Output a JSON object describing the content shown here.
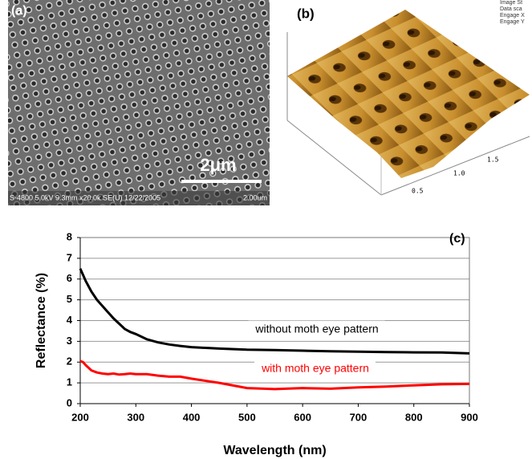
{
  "panel_a": {
    "label": "(a)",
    "scale_bar": "2μm",
    "info": "S-4800 5.0kV 9.3mm x20.0k SE(U) 12/22/2005",
    "field": "2.00um"
  },
  "panel_b": {
    "label": "(b)",
    "axis_labels": [
      "0.5",
      "1.0",
      "1.5"
    ],
    "header_lines": [
      "Image St",
      "Data sca",
      "Engage X",
      "Engage Y"
    ]
  },
  "chart_data": {
    "type": "line",
    "panel_label": "(c)",
    "xlabel": "Wavelength (nm)",
    "ylabel": "Reflectance (%)",
    "x": [
      200,
      205,
      210,
      220,
      230,
      240,
      250,
      260,
      270,
      280,
      290,
      300,
      320,
      340,
      360,
      380,
      400,
      450,
      500,
      550,
      600,
      650,
      700,
      750,
      800,
      850,
      900
    ],
    "series": [
      {
        "name": "without moth eye pattern",
        "color": "#000000",
        "values": [
          6.5,
          6.2,
          5.9,
          5.4,
          5.0,
          4.7,
          4.4,
          4.1,
          3.85,
          3.6,
          3.45,
          3.35,
          3.1,
          2.95,
          2.85,
          2.78,
          2.72,
          2.65,
          2.6,
          2.58,
          2.55,
          2.52,
          2.5,
          2.48,
          2.47,
          2.46,
          2.42
        ]
      },
      {
        "name": "with moth eye pattern",
        "color": "#ff0000",
        "values": [
          2.05,
          2.0,
          1.85,
          1.6,
          1.5,
          1.45,
          1.42,
          1.45,
          1.4,
          1.42,
          1.45,
          1.42,
          1.42,
          1.35,
          1.3,
          1.3,
          1.2,
          1.0,
          0.75,
          0.7,
          0.75,
          0.72,
          0.78,
          0.82,
          0.88,
          0.93,
          0.95
        ]
      }
    ],
    "xlim": [
      200,
      900
    ],
    "xticks": [
      200,
      300,
      400,
      500,
      600,
      700,
      800,
      900
    ],
    "ylim": [
      0,
      8
    ],
    "yticks": [
      0,
      1,
      2,
      3,
      4,
      5,
      6,
      7,
      8
    ],
    "grid": true
  }
}
